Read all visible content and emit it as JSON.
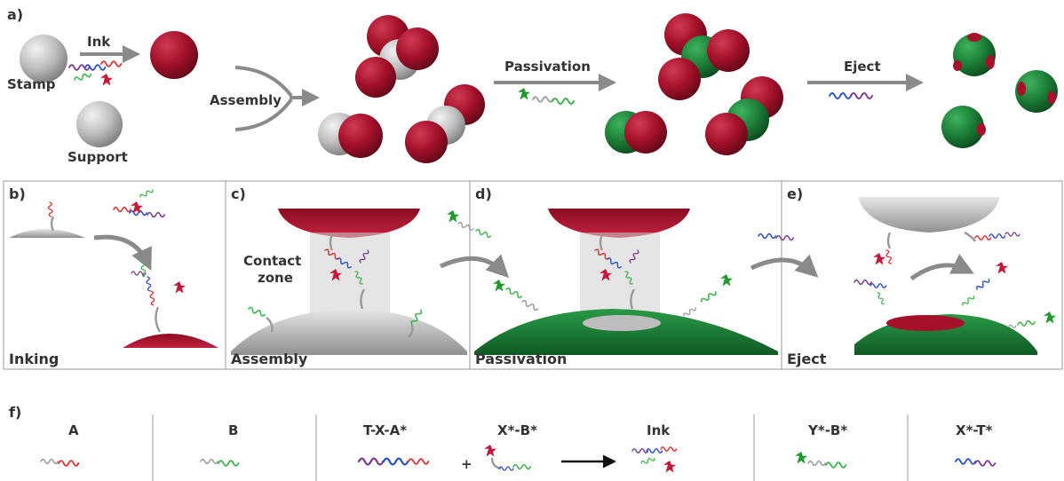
{
  "panel_a": {
    "letter": "a)",
    "stamp_label": "Stamp",
    "support_label": "Support",
    "ink_label": "Ink",
    "assembly_label": "Assembly",
    "passivation_label": "Passivation",
    "eject_label": "Eject"
  },
  "panel_b": {
    "letter": "b)",
    "caption": "Inking"
  },
  "panel_c": {
    "letter": "c)",
    "caption": "Assembly",
    "contact_line1": "Contact",
    "contact_line2": "zone"
  },
  "panel_d": {
    "letter": "d)",
    "caption": "Passivation"
  },
  "panel_e": {
    "letter": "e)",
    "caption": "Eject"
  },
  "panel_f": {
    "letter": "f)",
    "legend": [
      {
        "label": "A"
      },
      {
        "label": "B"
      },
      {
        "label": "T-X-A*"
      },
      {
        "label": "X*-B*"
      },
      {
        "label": "Ink"
      },
      {
        "label": "Y*-B*"
      },
      {
        "label": "X*-T*"
      }
    ],
    "plus": "+"
  },
  "colors": {
    "red": "#a5102a",
    "green": "#1f8a3c",
    "grey": "#b9b9b9",
    "dna_red": "#e03030",
    "dna_green": "#3cb34a",
    "dna_blue": "#2b4fd1",
    "dna_purple": "#7a3a8c",
    "dna_grey": "#9a9a9a",
    "star_red": "#c41a3a",
    "star_green": "#1e9a2e",
    "arrow": "#8a8a8a"
  }
}
